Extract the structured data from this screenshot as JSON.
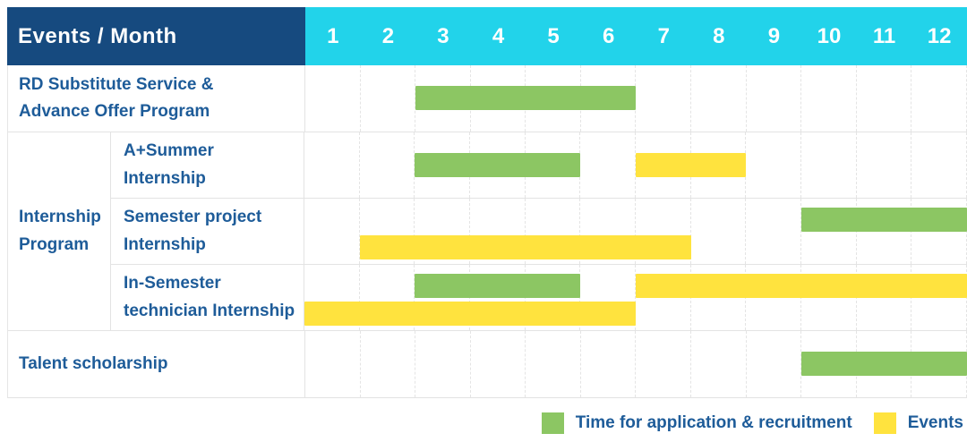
{
  "chart_data": {
    "type": "gantt",
    "title": "Events / Month",
    "x_axis": {
      "label": "Month",
      "ticks": [
        "1",
        "2",
        "3",
        "4",
        "5",
        "6",
        "7",
        "8",
        "9",
        "10",
        "11",
        "12"
      ],
      "range": [
        1,
        12
      ]
    },
    "grid": "dashed-vertical-month-lines",
    "legend_position": "bottom-right",
    "series_legend": [
      {
        "id": "application",
        "label": "Time for application & recruitment",
        "color": "#8cc663"
      },
      {
        "id": "events",
        "label": "Events",
        "color": "#ffe33e"
      }
    ],
    "rows": [
      {
        "kind": "simple",
        "label": "RD Substitute Service & Advance Offer Program",
        "label_lines": [
          "RD Substitute Service &",
          "Advance Offer Program"
        ],
        "bars": [
          {
            "series": "application",
            "start_month": 3,
            "end_month": 6,
            "lane": "center"
          }
        ]
      },
      {
        "kind": "group",
        "label": "Internship Program",
        "label_lines": [
          "Internship",
          "Program"
        ],
        "children": [
          {
            "label": "A+Summer Internship",
            "label_lines": [
              "A+Summer",
              "Internship"
            ],
            "bars": [
              {
                "series": "application",
                "start_month": 3,
                "end_month": 5,
                "lane": "center"
              },
              {
                "series": "events",
                "start_month": 7,
                "end_month": 8,
                "lane": "center"
              }
            ]
          },
          {
            "label": "Semester project Internship",
            "label_lines": [
              "Semester project",
              "Internship"
            ],
            "bars": [
              {
                "series": "application",
                "start_month": 10,
                "end_month": 12,
                "lane": "top"
              },
              {
                "series": "events",
                "start_month": 2,
                "end_month": 7,
                "lane": "bottom"
              }
            ]
          },
          {
            "label": "In-Semester technician Internship",
            "label_lines": [
              "In-Semester",
              "technician Internship"
            ],
            "bars": [
              {
                "series": "application",
                "start_month": 3,
                "end_month": 5,
                "lane": "top"
              },
              {
                "series": "events",
                "start_month": 7,
                "end_month": 12,
                "lane": "top"
              },
              {
                "series": "events",
                "start_month": 1,
                "end_month": 6,
                "lane": "bottom"
              }
            ]
          }
        ]
      },
      {
        "kind": "simple",
        "label": "Talent scholarship",
        "label_lines": [
          "Talent scholarship"
        ],
        "bars": [
          {
            "series": "application",
            "start_month": 10,
            "end_month": 12,
            "lane": "center"
          }
        ]
      }
    ]
  },
  "colors": {
    "header_bg": "#164a7f",
    "month_header_bg": "#22d3ea",
    "header_text": "#ffffff",
    "label_text": "#1e5c99",
    "bar_green": "#8cc663",
    "bar_yellow": "#ffe33e",
    "grid_line": "#e3e3e3"
  }
}
